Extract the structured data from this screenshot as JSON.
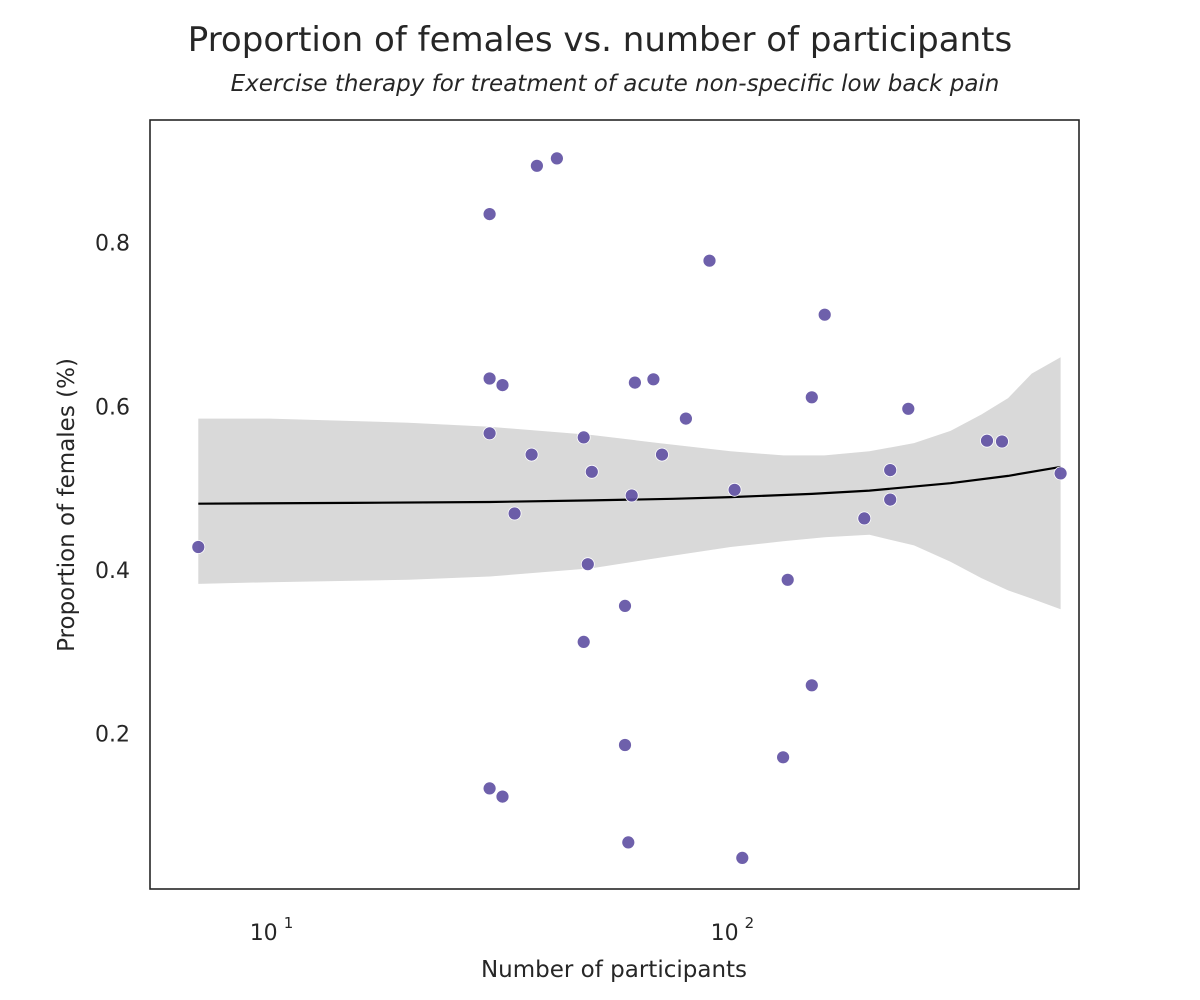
{
  "chart_data": {
    "type": "scatter",
    "title": "Proportion of females vs. number of participants",
    "subtitle": "Exercise therapy for treatment of acute non-specific low back pain",
    "xlabel": "Number of participants",
    "ylabel": "Proportion of females (%)",
    "xscale": "log",
    "xlim": [
      5.5,
      570
    ],
    "ylim": [
      0.01,
      0.95
    ],
    "grid": false,
    "x_ticks": [
      {
        "value": 10,
        "base": "10",
        "exponent": "1"
      },
      {
        "value": 100,
        "base": "10",
        "exponent": "2"
      }
    ],
    "y_ticks": [
      {
        "value": 0.2,
        "label": "0.2"
      },
      {
        "value": 0.4,
        "label": "0.4"
      },
      {
        "value": 0.6,
        "label": "0.6"
      },
      {
        "value": 0.8,
        "label": "0.8"
      }
    ],
    "colors": {
      "points": "#5e4fa2",
      "fit_line": "#000000",
      "confidence_band": "#d9d9d9"
    },
    "points": [
      {
        "x": 7,
        "y": 0.428
      },
      {
        "x": 30,
        "y": 0.835
      },
      {
        "x": 30,
        "y": 0.634
      },
      {
        "x": 30,
        "y": 0.567
      },
      {
        "x": 30,
        "y": 0.133
      },
      {
        "x": 32,
        "y": 0.626
      },
      {
        "x": 32,
        "y": 0.123
      },
      {
        "x": 34,
        "y": 0.469
      },
      {
        "x": 37,
        "y": 0.541
      },
      {
        "x": 38,
        "y": 0.894
      },
      {
        "x": 42,
        "y": 0.903
      },
      {
        "x": 48,
        "y": 0.562
      },
      {
        "x": 48,
        "y": 0.312
      },
      {
        "x": 49,
        "y": 0.407
      },
      {
        "x": 50,
        "y": 0.52
      },
      {
        "x": 59,
        "y": 0.356
      },
      {
        "x": 59,
        "y": 0.186
      },
      {
        "x": 60,
        "y": 0.067
      },
      {
        "x": 61,
        "y": 0.491
      },
      {
        "x": 62,
        "y": 0.629
      },
      {
        "x": 68,
        "y": 0.633
      },
      {
        "x": 71,
        "y": 0.541
      },
      {
        "x": 80,
        "y": 0.585
      },
      {
        "x": 90,
        "y": 0.778
      },
      {
        "x": 102,
        "y": 0.498
      },
      {
        "x": 106,
        "y": 0.048
      },
      {
        "x": 130,
        "y": 0.171
      },
      {
        "x": 133,
        "y": 0.388
      },
      {
        "x": 150,
        "y": 0.611
      },
      {
        "x": 150,
        "y": 0.259
      },
      {
        "x": 160,
        "y": 0.712
      },
      {
        "x": 195,
        "y": 0.463
      },
      {
        "x": 222,
        "y": 0.522
      },
      {
        "x": 222,
        "y": 0.486
      },
      {
        "x": 243,
        "y": 0.597
      },
      {
        "x": 360,
        "y": 0.558
      },
      {
        "x": 388,
        "y": 0.557
      },
      {
        "x": 520,
        "y": 0.518
      }
    ],
    "fit_line": {
      "x": [
        7,
        15,
        30,
        50,
        75,
        100,
        150,
        200,
        300,
        400,
        520
      ],
      "y": [
        0.481,
        0.482,
        0.483,
        0.485,
        0.487,
        0.489,
        0.493,
        0.497,
        0.506,
        0.515,
        0.526
      ]
    },
    "confidence_band": {
      "x": [
        7,
        10,
        20,
        30,
        50,
        70,
        100,
        130,
        160,
        200,
        250,
        300,
        350,
        400,
        450,
        520
      ],
      "upper": [
        0.585,
        0.585,
        0.58,
        0.575,
        0.565,
        0.555,
        0.545,
        0.54,
        0.54,
        0.545,
        0.555,
        0.57,
        0.59,
        0.61,
        0.64,
        0.66
      ],
      "lower": [
        0.383,
        0.385,
        0.388,
        0.392,
        0.402,
        0.415,
        0.428,
        0.435,
        0.44,
        0.443,
        0.43,
        0.41,
        0.39,
        0.375,
        0.365,
        0.352
      ]
    }
  }
}
